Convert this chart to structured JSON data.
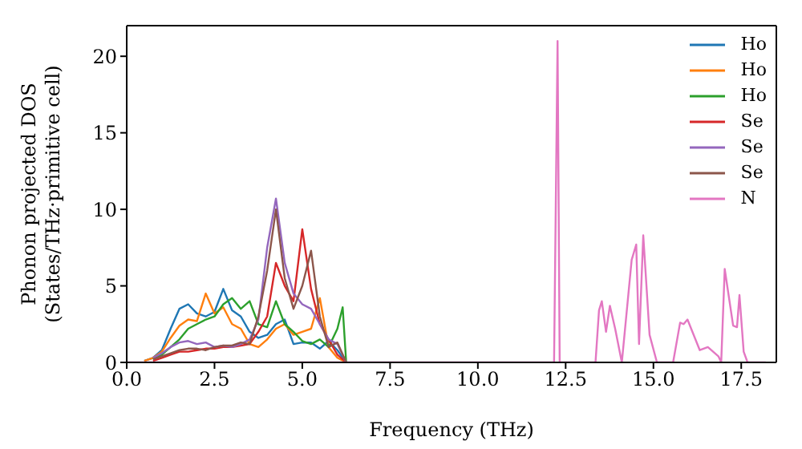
{
  "chart_data": {
    "type": "line",
    "xlabel": "Frequency (THz)",
    "ylabel": "Phonon projected DOS\n(States/THz·primitive cell)",
    "xlim": [
      0,
      18.5
    ],
    "xticks": [
      {
        "value": 0,
        "label": "0.0"
      },
      {
        "value": 2.5,
        "label": "2.5"
      },
      {
        "value": 5,
        "label": "5.0"
      },
      {
        "value": 7.5,
        "label": "7.5"
      },
      {
        "value": 10,
        "label": "10.0"
      },
      {
        "value": 12.5,
        "label": "12.5"
      },
      {
        "value": 15,
        "label": "15.0"
      },
      {
        "value": 17.5,
        "label": "17.5"
      }
    ],
    "ylim": [
      0,
      22
    ],
    "yticks": [
      0,
      5,
      10,
      15,
      20
    ],
    "grid": false,
    "legend": "top right",
    "marker": "none",
    "line_style": "solid",
    "series": [
      {
        "name": "Ho",
        "color": "#1f77b4",
        "x": [
          0.5,
          0.75,
          1,
          1.25,
          1.5,
          1.75,
          2,
          2.25,
          2.5,
          2.75,
          3,
          3.25,
          3.5,
          3.75,
          4,
          4.25,
          4.5,
          4.75,
          5,
          5.25,
          5.5,
          5.75,
          6,
          6.25
        ],
        "values": [
          0.1,
          0.3,
          0.8,
          2.2,
          3.5,
          3.8,
          3.2,
          3.0,
          3.3,
          4.8,
          3.4,
          3.0,
          2.0,
          1.6,
          1.8,
          2.5,
          2.8,
          1.2,
          1.3,
          1.3,
          0.9,
          1.4,
          0.8,
          0
        ]
      },
      {
        "name": "Ho",
        "color": "#ff7f0e",
        "x": [
          0.5,
          0.75,
          1,
          1.25,
          1.5,
          1.75,
          2,
          2.25,
          2.5,
          2.75,
          3,
          3.25,
          3.5,
          3.75,
          4,
          4.25,
          4.5,
          4.75,
          5,
          5.25,
          5.5,
          5.75,
          6,
          6.25
        ],
        "values": [
          0.1,
          0.3,
          0.7,
          1.6,
          2.4,
          2.8,
          2.7,
          4.5,
          3.2,
          3.6,
          2.5,
          2.2,
          1.2,
          1.0,
          1.5,
          2.2,
          2.5,
          1.8,
          2.0,
          2.2,
          4.2,
          1.0,
          0.3,
          0
        ]
      },
      {
        "name": "Ho",
        "color": "#2ca02c",
        "x": [
          0.75,
          1,
          1.25,
          1.5,
          1.75,
          2,
          2.25,
          2.5,
          2.75,
          3,
          3.25,
          3.5,
          3.75,
          4,
          4.25,
          4.5,
          4.75,
          5,
          5.25,
          5.5,
          5.75,
          6,
          6.15,
          6.25
        ],
        "values": [
          0.2,
          0.5,
          1.0,
          1.5,
          2.2,
          2.5,
          2.8,
          3.0,
          3.8,
          4.2,
          3.5,
          4.0,
          2.5,
          2.3,
          4.0,
          2.5,
          2.0,
          1.4,
          1.2,
          1.5,
          1.0,
          2.2,
          3.6,
          0
        ]
      },
      {
        "name": "Se",
        "color": "#d62728",
        "x": [
          0.75,
          1,
          1.25,
          1.5,
          1.75,
          2,
          2.25,
          2.5,
          2.75,
          3,
          3.25,
          3.5,
          3.75,
          4,
          4.25,
          4.5,
          4.75,
          5,
          5.25,
          5.5,
          5.75,
          6,
          6.25
        ],
        "values": [
          0.1,
          0.3,
          0.5,
          0.7,
          0.7,
          0.8,
          0.9,
          0.9,
          1.0,
          1.0,
          1.1,
          1.2,
          2.0,
          3.0,
          6.5,
          5.0,
          4.0,
          8.7,
          4.8,
          2.5,
          1.5,
          0.5,
          0
        ]
      },
      {
        "name": "Se",
        "color": "#9467bd",
        "x": [
          0.75,
          1,
          1.25,
          1.5,
          1.75,
          2,
          2.25,
          2.5,
          2.75,
          3,
          3.25,
          3.5,
          3.75,
          4,
          4.25,
          4.5,
          4.75,
          5,
          5.25,
          5.5,
          5.75,
          6,
          6.25
        ],
        "values": [
          0.3,
          0.6,
          1.0,
          1.3,
          1.4,
          1.2,
          1.3,
          1.0,
          1.1,
          1.0,
          1.2,
          1.5,
          2.8,
          7.5,
          10.7,
          6.5,
          4.5,
          3.8,
          3.5,
          2.5,
          1.5,
          1.2,
          0
        ]
      },
      {
        "name": "Se",
        "color": "#8c564b",
        "x": [
          0.75,
          1,
          1.25,
          1.5,
          1.75,
          2,
          2.25,
          2.5,
          2.75,
          3,
          3.25,
          3.5,
          3.75,
          4,
          4.25,
          4.5,
          4.75,
          5,
          5.25,
          5.5,
          5.75,
          6,
          6.25
        ],
        "values": [
          0.2,
          0.4,
          0.6,
          0.8,
          0.9,
          0.9,
          0.8,
          1.0,
          1.1,
          1.1,
          1.3,
          1.2,
          3.0,
          6.0,
          10.0,
          5.5,
          3.5,
          5.0,
          7.3,
          3.0,
          1.0,
          1.3,
          0
        ]
      },
      {
        "name": "N",
        "color": "#e377c2",
        "x": [
          0,
          12.17,
          12.27,
          12.33,
          13.35,
          13.45,
          13.53,
          13.65,
          13.76,
          13.91,
          14.1,
          14.38,
          14.51,
          14.59,
          14.71,
          14.89,
          15.1,
          15.56,
          15.76,
          15.86,
          15.97,
          16.32,
          16.55,
          16.85,
          16.93,
          17.03,
          17.27,
          17.38,
          17.45,
          17.57,
          17.68,
          18.2
        ],
        "values": [
          0,
          0,
          21,
          0,
          0,
          3.4,
          4.0,
          2.0,
          3.7,
          2.2,
          0,
          6.7,
          7.7,
          1.2,
          8.3,
          1.8,
          0,
          0,
          2.6,
          2.5,
          2.8,
          0.8,
          1.0,
          0.4,
          0,
          6.1,
          2.4,
          2.3,
          4.4,
          0.7,
          0,
          0
        ]
      }
    ]
  }
}
